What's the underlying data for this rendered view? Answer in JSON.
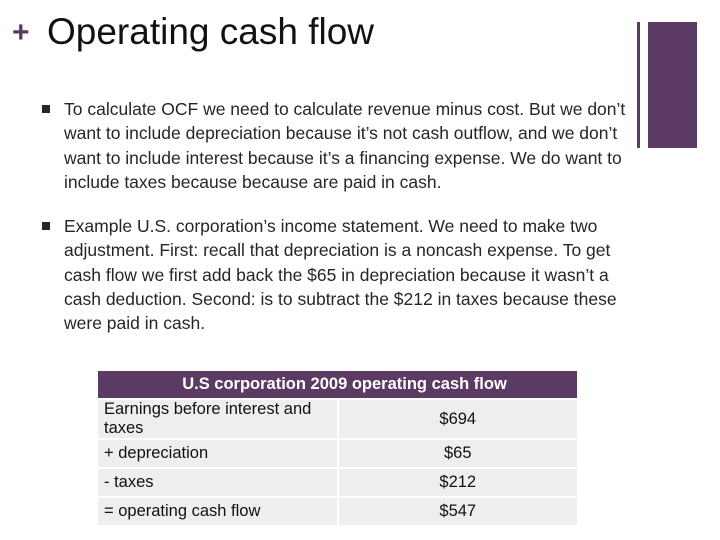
{
  "slide": {
    "title": "Operating cash flow",
    "bullets": [
      "To calculate OCF we need to calculate revenue minus cost. But we don’t want to include depreciation because it’s not cash outflow, and we don’t want to include interest because it’s a financing expense. We do want to include taxes because because are paid in cash.",
      "Example U.S. corporation’s income statement. We need to make two adjustment. First: recall that depreciation is a noncash expense. To get cash flow we first add back the $65 in depreciation because it wasn’t a cash deduction. Second: is to subtract the $212 in taxes because these were paid in cash."
    ],
    "table": {
      "header": "U.S corporation 2009 operating cash flow",
      "rows": [
        {
          "label": "Earnings before interest and taxes",
          "value": "$694"
        },
        {
          "label": "+ depreciation",
          "value": "$65"
        },
        {
          "label": "- taxes",
          "value": "$212"
        },
        {
          "label": "= operating cash flow",
          "value": "$547"
        }
      ]
    }
  },
  "colors": {
    "accent": "#5b3a63",
    "table_cell": "#eeeeee"
  },
  "icons": {
    "title_marker": "plus-icon",
    "bullet_marker": "square-bullet-icon"
  }
}
